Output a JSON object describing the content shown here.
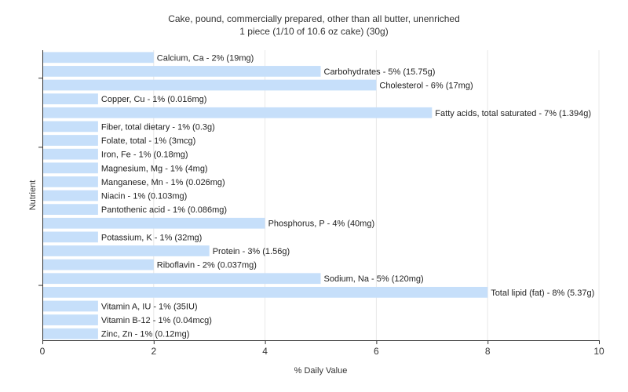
{
  "chart_data": {
    "type": "bar",
    "orientation": "horizontal",
    "title": "Cake, pound, commercially prepared, other than all butter, unenriched",
    "subtitle": "1 piece (1/10 of 10.6 oz cake) (30g)",
    "xlabel": "% Daily Value",
    "ylabel": "Nutrient",
    "xlim": [
      0,
      10
    ],
    "xticks": [
      0,
      2,
      4,
      6,
      8,
      10
    ],
    "grid": true,
    "bar_color": "#c6dffa",
    "categories": [
      "Calcium, Ca",
      "Carbohydrates",
      "Cholesterol",
      "Copper, Cu",
      "Fatty acids, total saturated",
      "Fiber, total dietary",
      "Folate, total",
      "Iron, Fe",
      "Magnesium, Mg",
      "Manganese, Mn",
      "Niacin",
      "Pantothenic acid",
      "Phosphorus, P",
      "Potassium, K",
      "Protein",
      "Riboflavin",
      "Sodium, Na",
      "Total lipid (fat)",
      "Vitamin A, IU",
      "Vitamin B-12",
      "Zinc, Zn"
    ],
    "values": [
      2,
      5,
      6,
      1,
      7,
      1,
      1,
      1,
      1,
      1,
      1,
      1,
      4,
      1,
      3,
      2,
      5,
      8,
      1,
      1,
      1
    ],
    "labels": [
      "Calcium, Ca - 2% (19mg)",
      "Carbohydrates - 5% (15.75g)",
      "Cholesterol - 6% (17mg)",
      "Copper, Cu - 1% (0.016mg)",
      "Fatty acids, total saturated - 7% (1.394g)",
      "Fiber, total dietary - 1% (0.3g)",
      "Folate, total - 1% (3mcg)",
      "Iron, Fe - 1% (0.18mg)",
      "Magnesium, Mg - 1% (4mg)",
      "Manganese, Mn - 1% (0.026mg)",
      "Niacin - 1% (0.103mg)",
      "Pantothenic acid - 1% (0.086mg)",
      "Phosphorus, P - 4% (40mg)",
      "Potassium, K - 1% (32mg)",
      "Protein - 3% (1.56g)",
      "Riboflavin - 2% (0.037mg)",
      "Sodium, Na - 5% (120mg)",
      "Total lipid (fat) - 8% (5.37g)",
      "Vitamin A, IU - 1% (35IU)",
      "Vitamin B-12 - 1% (0.04mcg)",
      "Zinc, Zn - 1% (0.12mg)"
    ]
  }
}
